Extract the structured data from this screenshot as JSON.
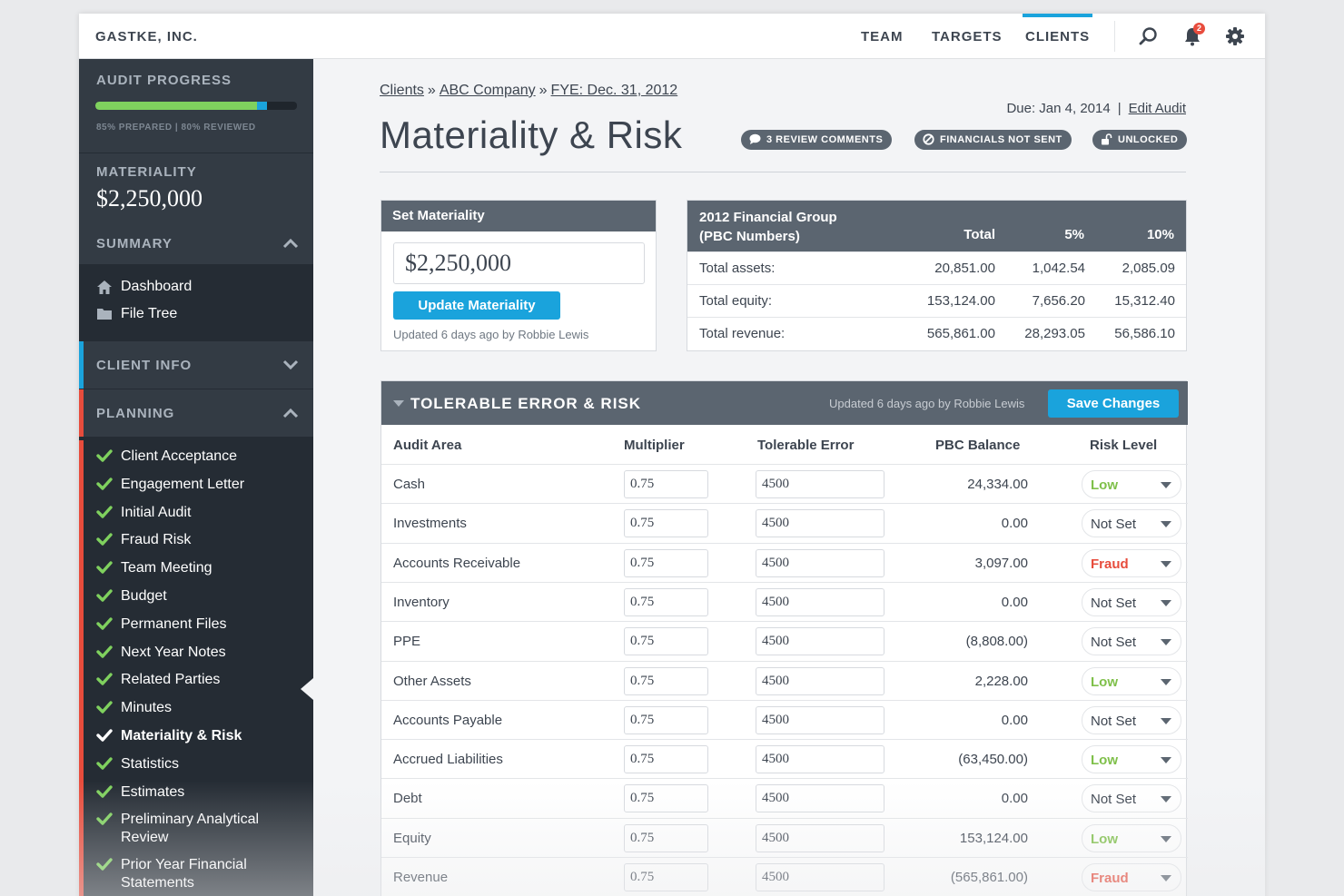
{
  "topbar": {
    "brand": "GASTKE, INC.",
    "nav": [
      {
        "label": "TEAM",
        "active": false
      },
      {
        "label": "TARGETS",
        "active": false
      },
      {
        "label": "CLIENTS",
        "active": true
      }
    ],
    "icons": [
      "search-icon",
      "bell-icon",
      "gear-icon"
    ],
    "notification_count": "2"
  },
  "sidebar": {
    "progress_title": "AUDIT PROGRESS",
    "progress_prepared": 0.85,
    "progress_reviewed": 0.8,
    "progress_caption": "85% PREPARED | 80% REVIEWED",
    "materiality_title": "MATERIALITY",
    "materiality_value": "$2,250,000",
    "summary_label": "SUMMARY",
    "summary_links": [
      {
        "label": "Dashboard",
        "icon": "home-icon"
      },
      {
        "label": "File Tree",
        "icon": "folder-icon"
      }
    ],
    "client_info_label": "CLIENT INFO",
    "planning_label": "PLANNING",
    "planning_items": [
      "Client Acceptance",
      "Engagement Letter",
      "Initial Audit",
      "Fraud Risk",
      "Team Meeting",
      "Budget",
      "Permanent Files",
      "Next Year Notes",
      "Related Parties",
      "Minutes",
      "Materiality & Risk",
      "Statistics",
      "Estimates",
      "Preliminary Analytical Review",
      "Prior Year Financial Statements"
    ],
    "planning_active": "Materiality & Risk"
  },
  "breadcrumb": {
    "items": [
      "Clients",
      "ABC Company",
      "FYE: Dec. 31, 2012"
    ],
    "separator": "»"
  },
  "page": {
    "title": "Materiality & Risk",
    "due": "Due: Jan 4, 2014",
    "edit_link": "Edit Audit",
    "pills": [
      {
        "label": "3 REVIEW COMMENTS",
        "icon": "comment-icon"
      },
      {
        "label": "FINANCIALS NOT SENT",
        "icon": "blocked-icon"
      },
      {
        "label": "UNLOCKED",
        "icon": "unlock-icon"
      }
    ]
  },
  "set_materiality": {
    "title": "Set Materiality",
    "value": "$2,250,000",
    "button": "Update Materiality",
    "updated": "Updated 6 days ago by Robbie Lewis"
  },
  "financial_group": {
    "title_line1": "2012 Financial Group",
    "title_line2": "(PBC Numbers)",
    "columns": [
      "Total",
      "5%",
      "10%"
    ],
    "rows": [
      {
        "label": "Total assets:",
        "total": "20,851.00",
        "p5": "1,042.54",
        "p10": "2,085.09"
      },
      {
        "label": "Total equity:",
        "total": "153,124.00",
        "p5": "7,656.20",
        "p10": "15,312.40"
      },
      {
        "label": "Total revenue:",
        "total": "565,861.00",
        "p5": "28,293.05",
        "p10": "56,586.10"
      }
    ]
  },
  "tolerable": {
    "title": "TOLERABLE ERROR & RISK",
    "updated": "Updated 6 days ago by Robbie Lewis",
    "save_button": "Save Changes",
    "columns": [
      "Audit Area",
      "Multiplier",
      "Tolerable Error",
      "PBC Balance",
      "Risk Level"
    ],
    "rows": [
      {
        "area": "Cash",
        "multiplier": "0.75",
        "tolerable": "4500",
        "balance": "24,334.00",
        "risk": "Low"
      },
      {
        "area": "Investments",
        "multiplier": "0.75",
        "tolerable": "4500",
        "balance": "0.00",
        "risk": "Not Set"
      },
      {
        "area": "Accounts Receivable",
        "multiplier": "0.75",
        "tolerable": "4500",
        "balance": "3,097.00",
        "risk": "Fraud"
      },
      {
        "area": "Inventory",
        "multiplier": "0.75",
        "tolerable": "4500",
        "balance": "0.00",
        "risk": "Not Set"
      },
      {
        "area": "PPE",
        "multiplier": "0.75",
        "tolerable": "4500",
        "balance": "(8,808.00)",
        "risk": "Not Set"
      },
      {
        "area": "Other Assets",
        "multiplier": "0.75",
        "tolerable": "4500",
        "balance": "2,228.00",
        "risk": "Low"
      },
      {
        "area": "Accounts Payable",
        "multiplier": "0.75",
        "tolerable": "4500",
        "balance": "0.00",
        "risk": "Not Set"
      },
      {
        "area": "Accrued Liabilities",
        "multiplier": "0.75",
        "tolerable": "4500",
        "balance": "(63,450.00)",
        "risk": "Low"
      },
      {
        "area": "Debt",
        "multiplier": "0.75",
        "tolerable": "4500",
        "balance": "0.00",
        "risk": "Not Set"
      },
      {
        "area": "Equity",
        "multiplier": "0.75",
        "tolerable": "4500",
        "balance": "153,124.00",
        "risk": "Low"
      },
      {
        "area": "Revenue",
        "multiplier": "0.75",
        "tolerable": "4500",
        "balance": "(565,861.00)",
        "risk": "Fraud"
      }
    ]
  },
  "colors": {
    "accent": "#1aa3dc",
    "low": "#7fc04a",
    "fraud": "#e74c3c",
    "not_set": "#3d4550",
    "client_info_stripe": "#1aa3dc",
    "planning_stripe": "#e74c3c",
    "check": "#7fd15e"
  }
}
